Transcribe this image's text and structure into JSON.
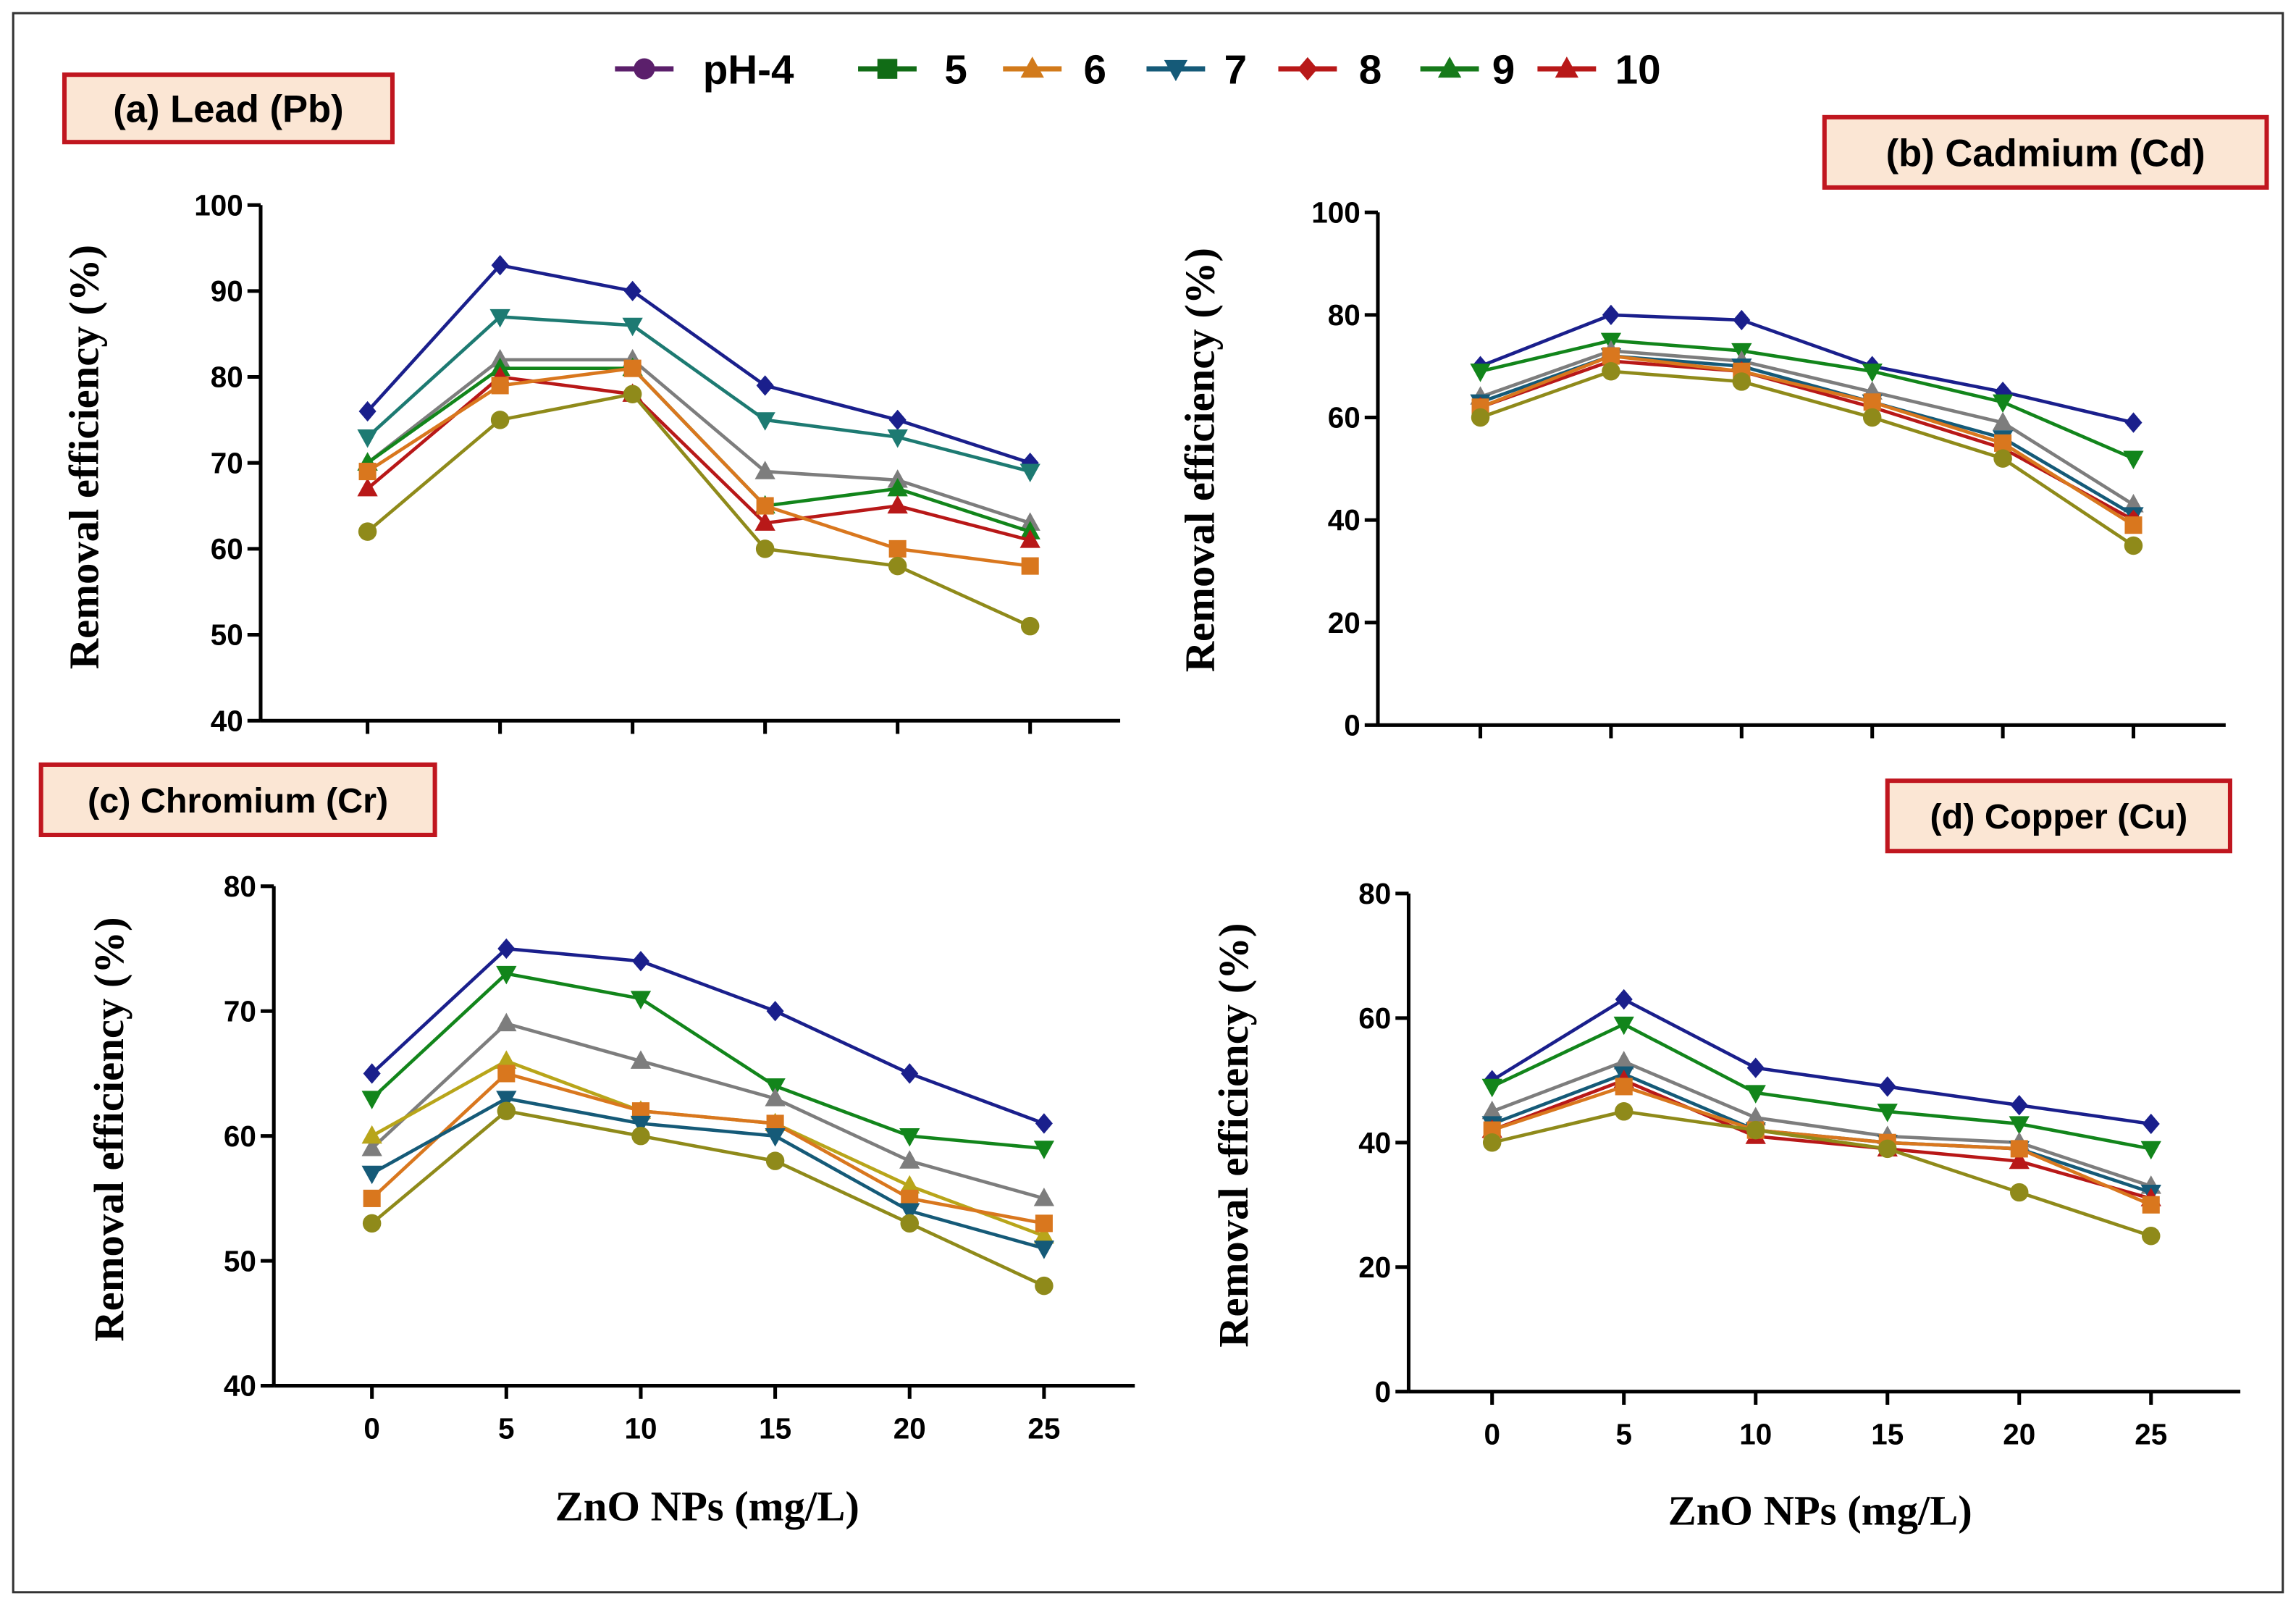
{
  "legend": [
    {
      "label": "pH-4",
      "color": "#5b1f6b",
      "marker": "circle"
    },
    {
      "label": "5",
      "color": "#116c16",
      "marker": "square"
    },
    {
      "label": "6",
      "color": "#d27a1a",
      "marker": "triangle-up"
    },
    {
      "label": "7",
      "color": "#155a78",
      "marker": "triangle-down"
    },
    {
      "label": "8",
      "color": "#b81818",
      "marker": "diamond"
    },
    {
      "label": "9",
      "color": "#167a1a",
      "marker": "triangle-up"
    },
    {
      "label": "10",
      "color": "#b81818",
      "marker": "triangle-up"
    }
  ],
  "chart_data": [
    {
      "type": "line",
      "title": "(a) Lead (Pb)",
      "xlabel": "",
      "ylabel": "Removal efficiency (%)",
      "x": [
        0,
        5,
        10,
        15,
        20,
        25
      ],
      "x_tick_labels_shown": false,
      "ylim": [
        40,
        100
      ],
      "yticks": [
        40,
        50,
        60,
        70,
        80,
        90,
        100
      ],
      "series": [
        {
          "color": "#1a1f8c",
          "marker": "diamond",
          "values": [
            76,
            93,
            90,
            79,
            75,
            70
          ]
        },
        {
          "color": "#1d7a72",
          "marker": "triangle-down",
          "values": [
            73,
            87,
            86,
            75,
            73,
            69
          ]
        },
        {
          "color": "#7d7d7d",
          "marker": "triangle-up",
          "values": [
            70,
            82,
            82,
            69,
            68,
            63
          ]
        },
        {
          "color": "#12851b",
          "marker": "triangle-up",
          "values": [
            70,
            81,
            81,
            65,
            67,
            62
          ]
        },
        {
          "color": "#b81818",
          "marker": "triangle-up",
          "values": [
            67,
            80,
            78,
            63,
            65,
            61
          ]
        },
        {
          "color": "#d9771e",
          "marker": "square",
          "values": [
            69,
            79,
            81,
            65,
            60,
            58
          ]
        },
        {
          "color": "#8f8a1a",
          "marker": "circle",
          "values": [
            62,
            75,
            78,
            60,
            58,
            51
          ]
        }
      ]
    },
    {
      "type": "line",
      "title": "(b) Cadmium (Cd)",
      "xlabel": "",
      "ylabel": "Removal efficiency (%)",
      "x": [
        0,
        5,
        10,
        15,
        20,
        25
      ],
      "x_tick_labels_shown": false,
      "ylim": [
        0,
        100
      ],
      "yticks": [
        0,
        20,
        40,
        60,
        80,
        100
      ],
      "series": [
        {
          "color": "#1a1f8c",
          "marker": "diamond",
          "values": [
            70,
            80,
            79,
            70,
            65,
            59
          ]
        },
        {
          "color": "#12851b",
          "marker": "triangle-down",
          "values": [
            69,
            75,
            73,
            69,
            63,
            52
          ]
        },
        {
          "color": "#7d7d7d",
          "marker": "triangle-up",
          "values": [
            64,
            73,
            71,
            65,
            59,
            43
          ]
        },
        {
          "color": "#155a78",
          "marker": "triangle-down",
          "values": [
            63,
            72,
            70,
            63,
            56,
            41
          ]
        },
        {
          "color": "#b81818",
          "marker": "diamond",
          "values": [
            62,
            71,
            69,
            62,
            54,
            40
          ]
        },
        {
          "color": "#d9771e",
          "marker": "square",
          "values": [
            62,
            72,
            69,
            63,
            55,
            39
          ]
        },
        {
          "color": "#8f8a1a",
          "marker": "circle",
          "values": [
            60,
            69,
            67,
            60,
            52,
            35
          ]
        }
      ]
    },
    {
      "type": "line",
      "title": "(c) Chromium (Cr)",
      "xlabel": "ZnO NPs (mg/L)",
      "ylabel": "Removal efficiency (%)",
      "x": [
        0,
        5,
        10,
        15,
        20,
        25
      ],
      "x_tick_labels_shown": true,
      "ylim": [
        40,
        80
      ],
      "yticks": [
        40,
        50,
        60,
        70,
        80
      ],
      "series": [
        {
          "color": "#1a1f8c",
          "marker": "diamond",
          "values": [
            65,
            75,
            74,
            70,
            65,
            61
          ]
        },
        {
          "color": "#12851b",
          "marker": "triangle-down",
          "values": [
            63,
            73,
            71,
            64,
            60,
            59
          ]
        },
        {
          "color": "#7d7d7d",
          "marker": "triangle-up",
          "values": [
            59,
            69,
            66,
            63,
            58,
            55
          ]
        },
        {
          "color": "#b8a51a",
          "marker": "triangle-up",
          "values": [
            60,
            66,
            62,
            61,
            56,
            52
          ]
        },
        {
          "color": "#d9771e",
          "marker": "square",
          "values": [
            55,
            65,
            62,
            61,
            55,
            53
          ]
        },
        {
          "color": "#155a78",
          "marker": "triangle-down",
          "values": [
            57,
            63,
            61,
            60,
            54,
            51
          ]
        },
        {
          "color": "#8f8a1a",
          "marker": "circle",
          "values": [
            53,
            62,
            60,
            58,
            53,
            48
          ]
        }
      ]
    },
    {
      "type": "line",
      "title": "(d) Copper (Cu)",
      "xlabel": "ZnO NPs (mg/L)",
      "ylabel": "Removal efficiency (%)",
      "x": [
        0,
        5,
        10,
        15,
        20,
        25
      ],
      "x_tick_labels_shown": true,
      "ylim": [
        0,
        80
      ],
      "yticks": [
        0,
        20,
        40,
        60,
        80
      ],
      "series": [
        {
          "color": "#1a1f8c",
          "marker": "diamond",
          "values": [
            50,
            63,
            52,
            49,
            46,
            43
          ]
        },
        {
          "color": "#12851b",
          "marker": "triangle-down",
          "values": [
            49,
            59,
            48,
            45,
            43,
            39
          ]
        },
        {
          "color": "#7d7d7d",
          "marker": "triangle-up",
          "values": [
            45,
            53,
            44,
            41,
            40,
            33
          ]
        },
        {
          "color": "#155a78",
          "marker": "triangle-down",
          "values": [
            43,
            51,
            42,
            40,
            39,
            32
          ]
        },
        {
          "color": "#b81818",
          "marker": "triangle-up",
          "values": [
            42,
            50,
            41,
            39,
            37,
            31
          ]
        },
        {
          "color": "#d9771e",
          "marker": "square",
          "values": [
            42,
            49,
            42,
            40,
            39,
            30
          ]
        },
        {
          "color": "#8f8a1a",
          "marker": "circle",
          "values": [
            40,
            45,
            42,
            39,
            32,
            25
          ]
        }
      ]
    }
  ]
}
